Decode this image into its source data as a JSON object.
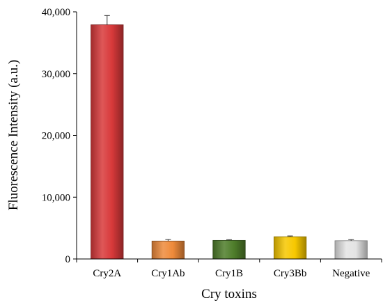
{
  "chart_data": {
    "type": "bar",
    "categories": [
      "Cry2A",
      "Cry1Ab",
      "Cry1B",
      "Cry3Bb",
      "Negative"
    ],
    "values": [
      37900,
      2900,
      3000,
      3600,
      2950
    ],
    "errors": [
      1500,
      250,
      120,
      120,
      180
    ],
    "colors": [
      "#d8393a",
      "#ee8a3a",
      "#4e7d2a",
      "#f7c800",
      "#e4e4e4"
    ],
    "xlabel": "Cry toxins",
    "ylabel": "Fluorescence Intensity (a.u.)",
    "ylim": [
      0,
      40000
    ],
    "yticks": [
      0,
      10000,
      20000,
      30000,
      40000
    ],
    "ytick_labels": [
      "0",
      "10,000",
      "20,000",
      "30,000",
      "40,000"
    ],
    "grid": false,
    "legend": "none"
  }
}
